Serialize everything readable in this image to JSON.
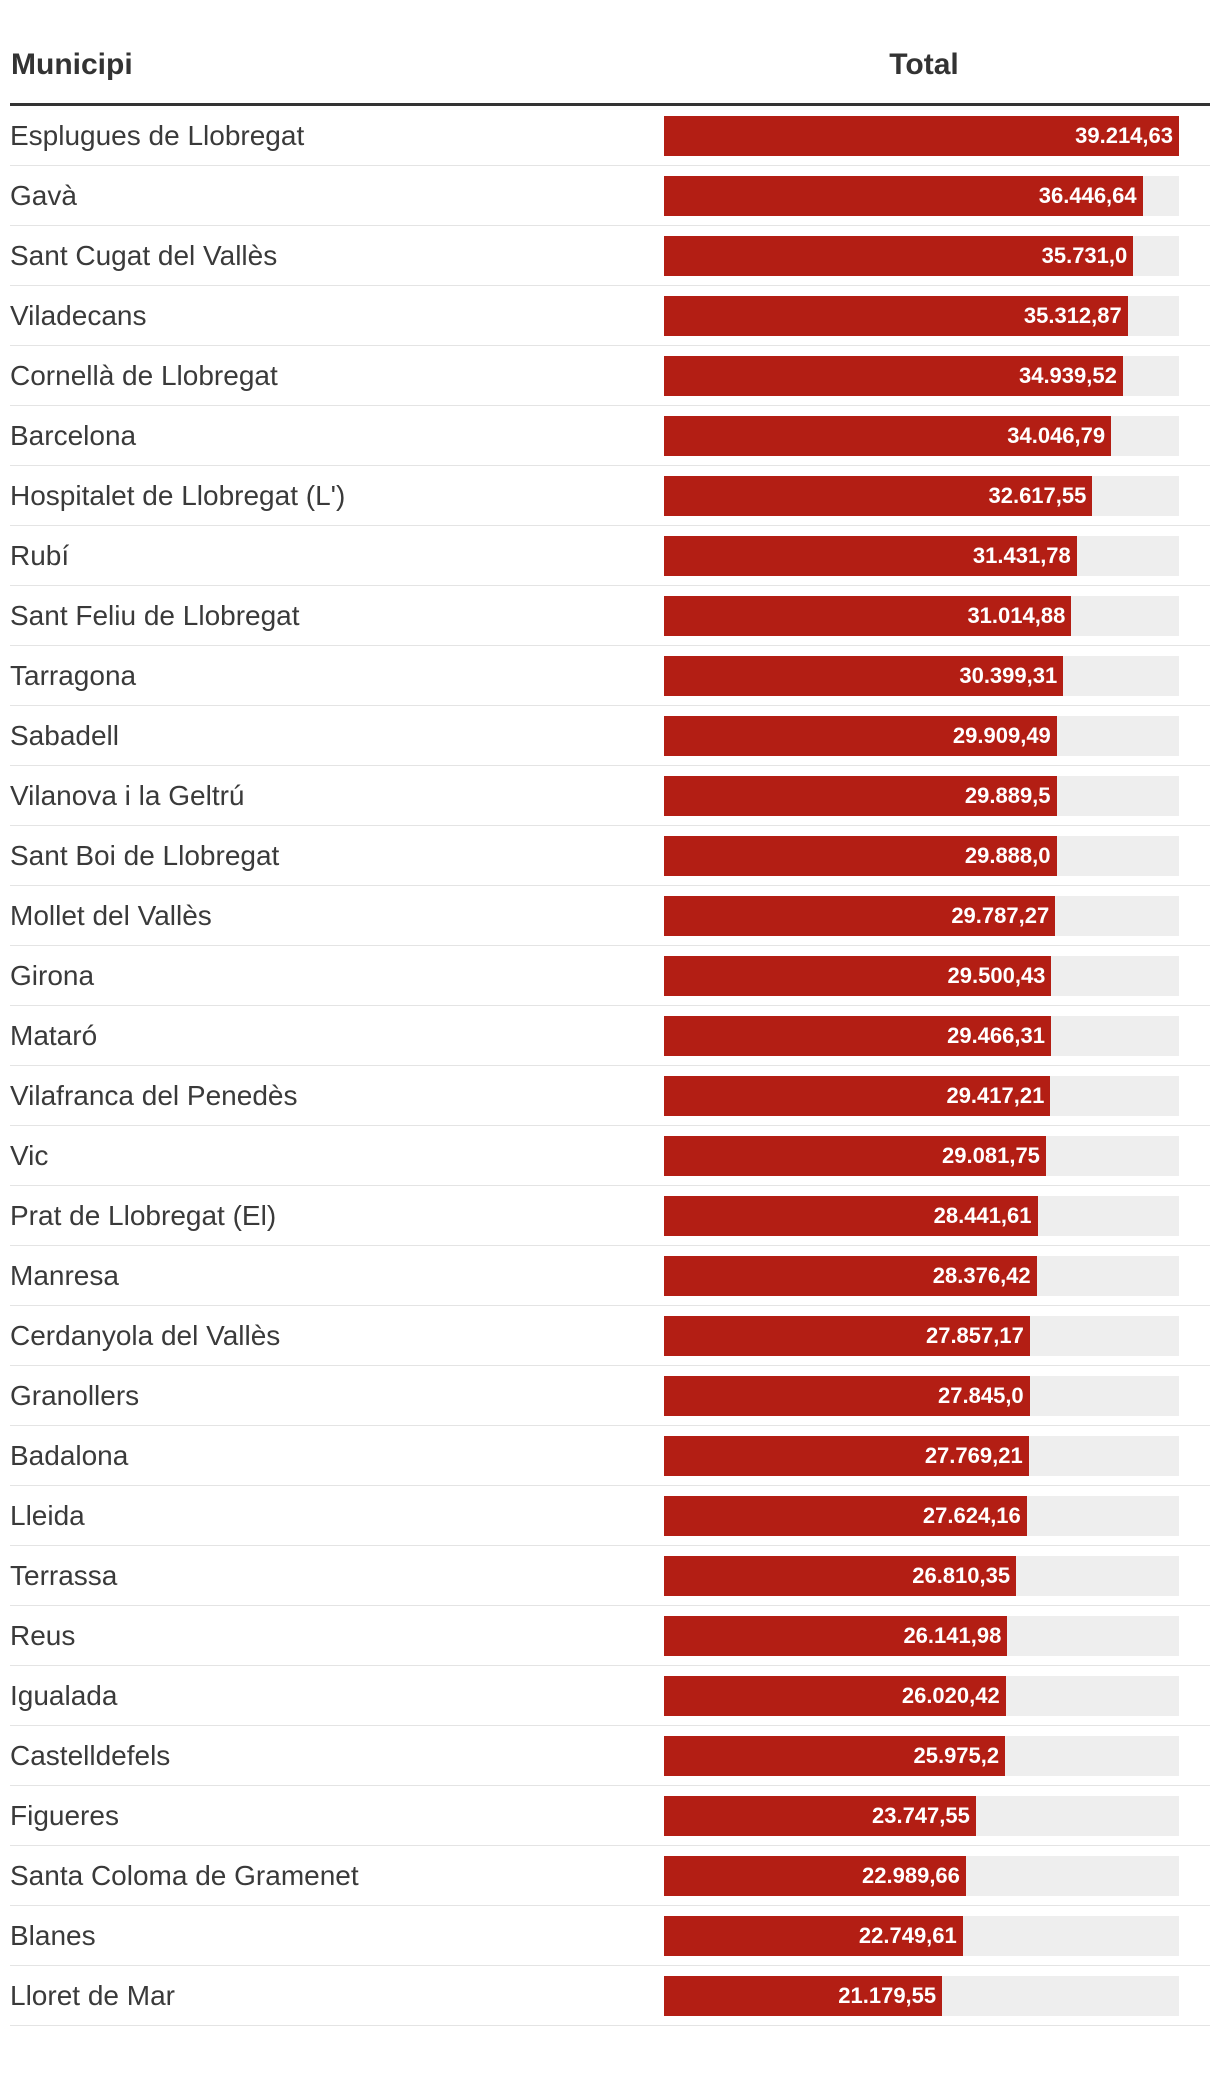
{
  "chart_data": {
    "type": "table",
    "columns": [
      "Municipi",
      "Total"
    ],
    "xlim": [
      0,
      39214.63
    ],
    "categories": [
      "Esplugues de Llobregat",
      "Gavà",
      "Sant Cugat del Vallès",
      "Viladecans",
      "Cornellà de Llobregat",
      "Barcelona",
      "Hospitalet de Llobregat (L')",
      "Rubí",
      "Sant Feliu de Llobregat",
      "Tarragona",
      "Sabadell",
      "Vilanova i la Geltrú",
      "Sant Boi de Llobregat",
      "Mollet del Vallès",
      "Girona",
      "Mataró",
      "Vilafranca del Penedès",
      "Vic",
      "Prat de Llobregat (El)",
      "Manresa",
      "Cerdanyola del Vallès",
      "Granollers",
      "Badalona",
      "Lleida",
      "Terrassa",
      "Reus",
      "Igualada",
      "Castelldefels",
      "Figueres",
      "Santa Coloma de Gramenet",
      "Blanes",
      "Lloret de Mar"
    ],
    "values": [
      39214.63,
      36446.64,
      35731.0,
      35312.87,
      34939.52,
      34046.79,
      32617.55,
      31431.78,
      31014.88,
      30399.31,
      29909.49,
      29889.5,
      29888.0,
      29787.27,
      29500.43,
      29466.31,
      29417.21,
      29081.75,
      28441.61,
      28376.42,
      27857.17,
      27845.0,
      27769.21,
      27624.16,
      26810.35,
      26141.98,
      26020.42,
      25975.2,
      23747.55,
      22989.66,
      22749.61,
      21179.55
    ],
    "labels": [
      "39.214,63",
      "36.446,64",
      "35.731,0",
      "35.312,87",
      "34.939,52",
      "34.046,79",
      "32.617,55",
      "31.431,78",
      "31.014,88",
      "30.399,31",
      "29.909,49",
      "29.889,5",
      "29.888,0",
      "29.787,27",
      "29.500,43",
      "29.466,31",
      "29.417,21",
      "29.081,75",
      "28.441,61",
      "28.376,42",
      "27.857,17",
      "27.845,0",
      "27.769,21",
      "27.624,16",
      "26.810,35",
      "26.141,98",
      "26.020,42",
      "25.975,2",
      "23.747,55",
      "22.989,66",
      "22.749,61",
      "21.179,55"
    ],
    "colors": {
      "bar": "#b31e14",
      "track": "#eeeeee"
    }
  }
}
